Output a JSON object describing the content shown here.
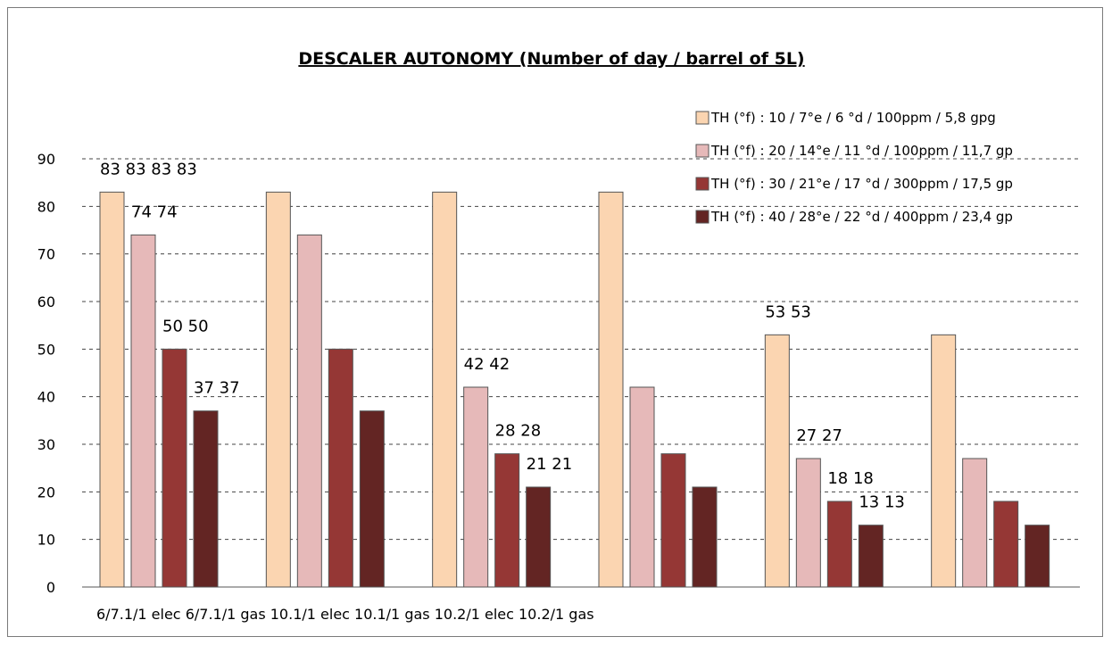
{
  "chart_data": {
    "type": "bar",
    "title": "DESCALER AUTONOMY (Number of day / barrel of 5L)",
    "xlabel": "",
    "ylabel": "",
    "ylim": [
      0,
      90
    ],
    "yticks": [
      0,
      10,
      20,
      30,
      40,
      50,
      60,
      70,
      80,
      90
    ],
    "grid": true,
    "legend_position": "top-right",
    "category_labels_text": "6/7.1/1 elec 6/7.1/1 gas 10.1/1 elec 10.1/1 gas 10.2/1 elec 10.2/1 gas",
    "categories": [
      "6/7.1/1 elec",
      "6/7.1/1 gas",
      "10.1/1 elec",
      "10.1/1 gas",
      "10.2/1 elec",
      "10.2/1 gas"
    ],
    "series": [
      {
        "name": "TH (°f) : 10 / 7°e / 6 °d / 100ppm / 5,8 gpg",
        "color": "#fbd5b1",
        "values": [
          83,
          83,
          83,
          83,
          53,
          53
        ]
      },
      {
        "name": "TH (°f) : 20 / 14°e / 11 °d / 100ppm / 11,7 gp",
        "color": "#e6b9b9",
        "values": [
          74,
          74,
          42,
          42,
          27,
          27
        ]
      },
      {
        "name": "TH (°f) : 30 / 21°e / 17 °d / 300ppm / 17,5 gp",
        "color": "#953735",
        "values": [
          50,
          50,
          28,
          28,
          18,
          18
        ]
      },
      {
        "name": "TH (°f) : 40 / 28°e / 22 °d / 400ppm / 23,4 gp",
        "color": "#632523",
        "values": [
          37,
          37,
          21,
          21,
          13,
          13
        ]
      }
    ],
    "data_labels": [
      {
        "text": "83 83 83 83",
        "series": 0,
        "category": 0
      },
      {
        "text": "74 74",
        "series": 1,
        "category": 0
      },
      {
        "text": "50 50",
        "series": 2,
        "category": 0
      },
      {
        "text": "37 37",
        "series": 3,
        "category": 0
      },
      {
        "text": "42 42",
        "series": 1,
        "category": 2
      },
      {
        "text": "28 28",
        "series": 2,
        "category": 2
      },
      {
        "text": "21 21",
        "series": 3,
        "category": 2
      },
      {
        "text": "53 53",
        "series": 0,
        "category": 4
      },
      {
        "text": "27 27",
        "series": 1,
        "category": 4
      },
      {
        "text": "18 18",
        "series": 2,
        "category": 4
      },
      {
        "text": "13 13",
        "series": 3,
        "category": 4
      }
    ]
  }
}
